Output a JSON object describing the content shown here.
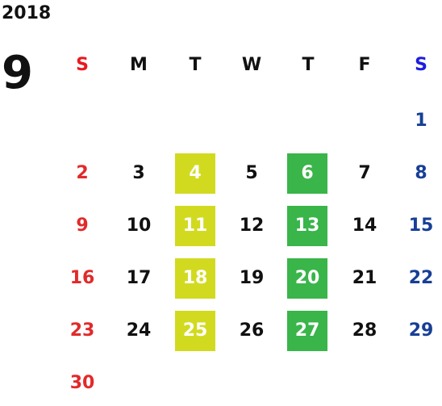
{
  "calendar": {
    "year": "2018",
    "month": "9",
    "weekdays": [
      "S",
      "M",
      "T",
      "W",
      "T",
      "F",
      "S"
    ],
    "weeks": [
      [
        "",
        "",
        "",
        "",
        "",
        "",
        "1"
      ],
      [
        "2",
        "3",
        "4",
        "5",
        "6",
        "7",
        "8"
      ],
      [
        "9",
        "10",
        "11",
        "12",
        "13",
        "14",
        "15"
      ],
      [
        "16",
        "17",
        "18",
        "19",
        "20",
        "21",
        "22"
      ],
      [
        "23",
        "24",
        "25",
        "26",
        "27",
        "28",
        "29"
      ],
      [
        "30",
        "",
        "",
        "",
        "",
        "",
        ""
      ]
    ],
    "colors": {
      "sunday": "#e22a2a",
      "saturday": "#173f96",
      "tuesday_highlight": "#d2da1f",
      "thursday_highlight": "#39b54a"
    }
  }
}
